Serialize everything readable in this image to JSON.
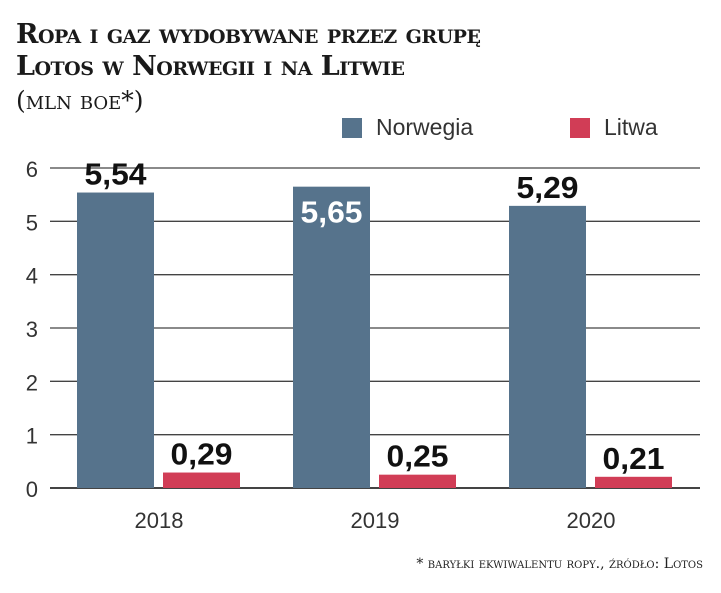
{
  "title_line1": "Ropa i gaz wydobywane przez grupę",
  "title_line2": "Lotos w Norwegii i na Litwie",
  "subtitle": "(mln boe*)",
  "footnote": "* baryłki ekwiwalentu ropy., źródło: Lotos",
  "colors": {
    "Norwegia": "#56738c",
    "Litwa": "#d13d56"
  },
  "chart_data": {
    "type": "bar",
    "categories": [
      "2018",
      "2019",
      "2020"
    ],
    "series": [
      {
        "name": "Norwegia",
        "values": [
          5.54,
          5.65,
          5.29
        ],
        "labels": [
          "5,54",
          "5,65",
          "5,29"
        ]
      },
      {
        "name": "Litwa",
        "values": [
          0.29,
          0.25,
          0.21
        ],
        "labels": [
          "0,29",
          "0,25",
          "0,21"
        ]
      }
    ],
    "yticks": [
      "0",
      "1",
      "2",
      "3",
      "4",
      "5",
      "6"
    ],
    "ylim": [
      0,
      6
    ],
    "grid": true,
    "legend": "top-right"
  }
}
